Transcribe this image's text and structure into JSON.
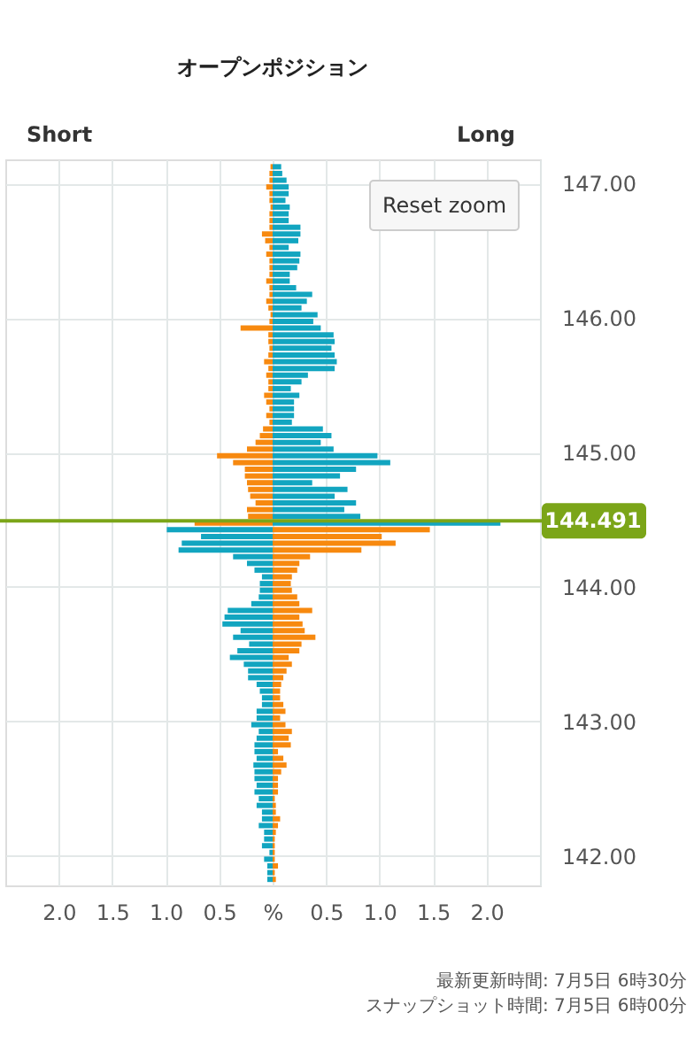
{
  "chart_data": {
    "type": "bar",
    "orientation": "horizontal",
    "stacked": true,
    "title": "オープンポジション",
    "annotations": [
      "Short",
      "Long",
      "Reset zoom",
      "最新更新時間: 7月5日 6時30分",
      "スナップショット時間: 7月5日 6時00分"
    ],
    "x": [
      147.125,
      147.075,
      147.025,
      146.975,
      146.925,
      146.875,
      146.825,
      146.775,
      146.725,
      146.675,
      146.625,
      146.575,
      146.525,
      146.475,
      146.425,
      146.375,
      146.325,
      146.275,
      146.225,
      146.175,
      146.125,
      146.075,
      146.025,
      145.975,
      145.925,
      145.875,
      145.825,
      145.775,
      145.725,
      145.675,
      145.625,
      145.575,
      145.525,
      145.475,
      145.425,
      145.375,
      145.325,
      145.275,
      145.225,
      145.175,
      145.125,
      145.075,
      145.025,
      144.975,
      144.925,
      144.875,
      144.825,
      144.775,
      144.725,
      144.675,
      144.625,
      144.575,
      144.525,
      144.475,
      144.425,
      144.375,
      144.325,
      144.275,
      144.225,
      144.175,
      144.125,
      144.075,
      144.025,
      143.975,
      143.925,
      143.875,
      143.825,
      143.775,
      143.725,
      143.675,
      143.625,
      143.575,
      143.525,
      143.475,
      143.425,
      143.375,
      143.325,
      143.275,
      143.225,
      143.175,
      143.125,
      143.075,
      143.025,
      142.975,
      142.925,
      142.875,
      142.825,
      142.775,
      142.725,
      142.675,
      142.625,
      142.575,
      142.525,
      142.475,
      142.425,
      142.375,
      142.325,
      142.275,
      142.225,
      142.175,
      142.125,
      142.075,
      142.025,
      141.975,
      141.925,
      141.875,
      141.825
    ],
    "series": [
      {
        "values": [
          -0.02,
          -0.03,
          -0.03,
          -0.06,
          -0.03,
          -0.03,
          -0.02,
          -0.03,
          -0.03,
          -0.03,
          -0.1,
          -0.07,
          -0.03,
          -0.06,
          -0.03,
          -0.03,
          -0.03,
          -0.06,
          -0.03,
          -0.03,
          -0.06,
          -0.04,
          -0.02,
          -0.03,
          -0.3,
          -0.04,
          -0.04,
          -0.03,
          -0.04,
          -0.08,
          -0.04,
          -0.06,
          -0.04,
          -0.04,
          -0.08,
          -0.06,
          -0.03,
          -0.06,
          -0.03,
          -0.09,
          -0.12,
          -0.16,
          -0.24,
          -0.52,
          -0.37,
          -0.26,
          -0.26,
          -0.24,
          -0.23,
          -0.21,
          -0.16,
          -0.24,
          -0.23,
          -0.73,
          -0.99,
          -0.67,
          -0.85,
          -0.88,
          -0.37,
          -0.24,
          -0.17,
          -0.1,
          -0.12,
          -0.12,
          -0.13,
          -0.2,
          -0.42,
          -0.45,
          -0.47,
          -0.3,
          -0.37,
          -0.22,
          -0.33,
          -0.4,
          -0.27,
          -0.23,
          -0.23,
          -0.15,
          -0.12,
          -0.1,
          -0.1,
          -0.15,
          -0.15,
          -0.2,
          -0.13,
          -0.15,
          -0.17,
          -0.17,
          -0.15,
          -0.18,
          -0.17,
          -0.17,
          -0.15,
          -0.17,
          -0.13,
          -0.15,
          -0.1,
          -0.1,
          -0.13,
          -0.08,
          -0.08,
          -0.1,
          -0.03,
          -0.08,
          -0.05,
          -0.05,
          -0.05
        ],
        "colors": [
          "#f7890f",
          "#f7890f",
          "#f7890f",
          "#f7890f",
          "#f7890f",
          "#f7890f",
          "#f7890f",
          "#f7890f",
          "#f7890f",
          "#f7890f",
          "#f7890f",
          "#f7890f",
          "#f7890f",
          "#f7890f",
          "#f7890f",
          "#f7890f",
          "#f7890f",
          "#f7890f",
          "#f7890f",
          "#f7890f",
          "#f7890f",
          "#f7890f",
          "#f7890f",
          "#f7890f",
          "#f7890f",
          "#f7890f",
          "#f7890f",
          "#f7890f",
          "#f7890f",
          "#f7890f",
          "#f7890f",
          "#f7890f",
          "#f7890f",
          "#f7890f",
          "#f7890f",
          "#f7890f",
          "#f7890f",
          "#f7890f",
          "#f7890f",
          "#f7890f",
          "#f7890f",
          "#f7890f",
          "#f7890f",
          "#f7890f",
          "#f7890f",
          "#f7890f",
          "#f7890f",
          "#f7890f",
          "#f7890f",
          "#f7890f",
          "#f7890f",
          "#f7890f",
          "#f7890f",
          "#f7890f",
          "#12a5c0",
          "#12a5c0",
          "#12a5c0",
          "#12a5c0",
          "#12a5c0",
          "#12a5c0",
          "#12a5c0",
          "#12a5c0",
          "#12a5c0",
          "#12a5c0",
          "#12a5c0",
          "#12a5c0",
          "#12a5c0",
          "#12a5c0",
          "#12a5c0",
          "#12a5c0",
          "#12a5c0",
          "#12a5c0",
          "#12a5c0",
          "#12a5c0",
          "#12a5c0",
          "#12a5c0",
          "#12a5c0",
          "#12a5c0",
          "#12a5c0",
          "#12a5c0",
          "#12a5c0",
          "#12a5c0",
          "#12a5c0",
          "#12a5c0",
          "#12a5c0",
          "#12a5c0",
          "#12a5c0",
          "#12a5c0",
          "#12a5c0",
          "#12a5c0",
          "#12a5c0",
          "#12a5c0",
          "#12a5c0",
          "#12a5c0",
          "#12a5c0",
          "#12a5c0",
          "#12a5c0",
          "#12a5c0",
          "#12a5c0",
          "#12a5c0",
          "#12a5c0",
          "#12a5c0",
          "#12a5c0",
          "#12a5c0",
          "#12a5c0",
          "#12a5c0",
          "#12a5c0"
        ]
      },
      {
        "values": [
          0.08,
          0.09,
          0.13,
          0.15,
          0.15,
          0.12,
          0.16,
          0.15,
          0.15,
          0.26,
          0.26,
          0.24,
          0.15,
          0.26,
          0.25,
          0.23,
          0.16,
          0.16,
          0.22,
          0.37,
          0.32,
          0.27,
          0.42,
          0.38,
          0.45,
          0.57,
          0.58,
          0.55,
          0.58,
          0.6,
          0.58,
          0.33,
          0.27,
          0.17,
          0.25,
          0.2,
          0.2,
          0.2,
          0.18,
          0.47,
          0.55,
          0.45,
          0.57,
          0.98,
          1.1,
          0.78,
          0.63,
          0.37,
          0.7,
          0.58,
          0.78,
          0.67,
          0.82,
          2.13,
          1.47,
          1.02,
          1.15,
          0.83,
          0.35,
          0.25,
          0.23,
          0.18,
          0.17,
          0.18,
          0.23,
          0.25,
          0.37,
          0.25,
          0.28,
          0.3,
          0.4,
          0.27,
          0.25,
          0.15,
          0.18,
          0.13,
          0.1,
          0.08,
          0.07,
          0.07,
          0.1,
          0.12,
          0.07,
          0.12,
          0.18,
          0.15,
          0.17,
          0.05,
          0.1,
          0.13,
          0.08,
          0.05,
          0.05,
          0.05,
          0.02,
          0.03,
          0.03,
          0.07,
          0.05,
          0.03,
          0.02,
          0.02,
          0.02,
          0.02,
          0.05,
          0.02,
          0.03
        ],
        "colors": [
          "#12a5c0",
          "#12a5c0",
          "#12a5c0",
          "#12a5c0",
          "#12a5c0",
          "#12a5c0",
          "#12a5c0",
          "#12a5c0",
          "#12a5c0",
          "#12a5c0",
          "#12a5c0",
          "#12a5c0",
          "#12a5c0",
          "#12a5c0",
          "#12a5c0",
          "#12a5c0",
          "#12a5c0",
          "#12a5c0",
          "#12a5c0",
          "#12a5c0",
          "#12a5c0",
          "#12a5c0",
          "#12a5c0",
          "#12a5c0",
          "#12a5c0",
          "#12a5c0",
          "#12a5c0",
          "#12a5c0",
          "#12a5c0",
          "#12a5c0",
          "#12a5c0",
          "#12a5c0",
          "#12a5c0",
          "#12a5c0",
          "#12a5c0",
          "#12a5c0",
          "#12a5c0",
          "#12a5c0",
          "#12a5c0",
          "#12a5c0",
          "#12a5c0",
          "#12a5c0",
          "#12a5c0",
          "#12a5c0",
          "#12a5c0",
          "#12a5c0",
          "#12a5c0",
          "#12a5c0",
          "#12a5c0",
          "#12a5c0",
          "#12a5c0",
          "#12a5c0",
          "#12a5c0",
          "#12a5c0",
          "#f7890f",
          "#f7890f",
          "#f7890f",
          "#f7890f",
          "#f7890f",
          "#f7890f",
          "#f7890f",
          "#f7890f",
          "#f7890f",
          "#f7890f",
          "#f7890f",
          "#f7890f",
          "#f7890f",
          "#f7890f",
          "#f7890f",
          "#f7890f",
          "#f7890f",
          "#f7890f",
          "#f7890f",
          "#f7890f",
          "#f7890f",
          "#f7890f",
          "#f7890f",
          "#f7890f",
          "#f7890f",
          "#f7890f",
          "#f7890f",
          "#f7890f",
          "#f7890f",
          "#f7890f",
          "#f7890f",
          "#f7890f",
          "#f7890f",
          "#f7890f",
          "#f7890f",
          "#f7890f",
          "#f7890f",
          "#f7890f",
          "#f7890f",
          "#f7890f",
          "#f7890f",
          "#f7890f",
          "#f7890f",
          "#f7890f",
          "#f7890f",
          "#f7890f",
          "#f7890f",
          "#f7890f",
          "#f7890f",
          "#f7890f",
          "#f7890f",
          "#f7890f",
          "#f7890f"
        ]
      }
    ],
    "xlim": [
      -2.5,
      2.5
    ],
    "xticks": [
      {
        "value": -2,
        "label": "2.0"
      },
      {
        "value": -1.5,
        "label": "1.5"
      },
      {
        "value": -1,
        "label": "1.0"
      },
      {
        "value": -0.5,
        "label": "0.5"
      },
      {
        "value": 0,
        "label": "%"
      },
      {
        "value": 0.5,
        "label": "0.5"
      },
      {
        "value": 1,
        "label": "1.0"
      },
      {
        "value": 1.5,
        "label": "1.5"
      },
      {
        "value": 2,
        "label": "2.0"
      }
    ],
    "ylim": [
      141.78,
      147.18
    ],
    "yticks": [
      {
        "value": 142,
        "label": "142.00"
      },
      {
        "value": 143,
        "label": "143.00"
      },
      {
        "value": 144,
        "label": "144.00"
      },
      {
        "value": 145,
        "label": "145.00"
      },
      {
        "value": 146,
        "label": "146.00"
      },
      {
        "value": 147,
        "label": "147.00"
      }
    ],
    "grid": true,
    "ref_lines": [
      {
        "axis": "y",
        "value": 144.491,
        "label": "144.491",
        "color": "#7ba518"
      }
    ]
  }
}
